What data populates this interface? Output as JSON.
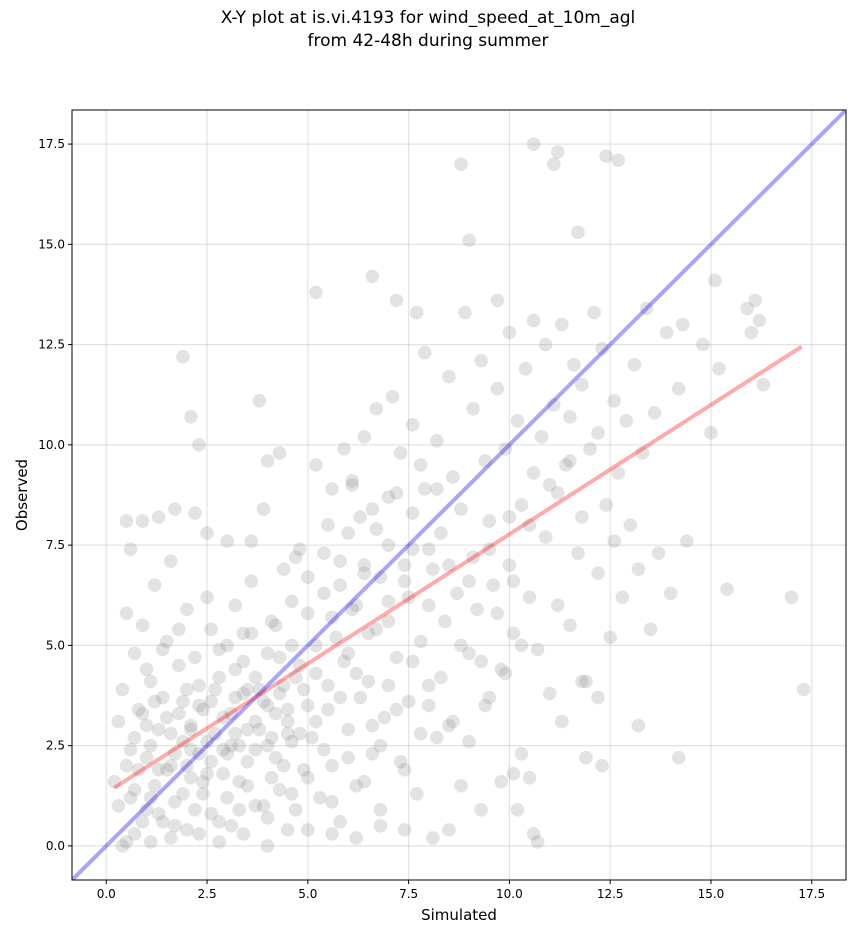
{
  "chart_data": {
    "type": "scatter",
    "title_line1": "X-Y plot at is.vi.4193 for wind_speed_at_10m_agl",
    "title_line2": "from 42-48h during summer",
    "xlabel": "Simulated",
    "ylabel": "Observed",
    "xlim": [
      -0.85,
      18.35
    ],
    "ylim": [
      -0.85,
      18.35
    ],
    "x_ticks": [
      0.0,
      2.5,
      5.0,
      7.5,
      10.0,
      12.5,
      15.0,
      17.5
    ],
    "y_ticks": [
      0.0,
      2.5,
      5.0,
      7.5,
      10.0,
      12.5,
      15.0,
      17.5
    ],
    "x_tick_labels": [
      "0.0",
      "2.5",
      "5.0",
      "7.5",
      "10.0",
      "12.5",
      "15.0",
      "17.5"
    ],
    "y_tick_labels": [
      "0.0",
      "2.5",
      "5.0",
      "7.5",
      "10.0",
      "12.5",
      "15.0",
      "17.5"
    ],
    "grid": true,
    "point_color": "#808080",
    "point_alpha": 0.22,
    "identity_line": {
      "color": "#0000ff",
      "alpha": 0.35,
      "from": [
        -0.85,
        -0.85
      ],
      "to": [
        18.35,
        18.35
      ]
    },
    "fit_line": {
      "color": "#ff0000",
      "alpha": 0.33,
      "from": [
        0.2,
        1.45
      ],
      "to": [
        17.25,
        12.45
      ]
    },
    "points": [
      [
        0.2,
        1.6
      ],
      [
        0.3,
        3.1
      ],
      [
        0.4,
        3.9
      ],
      [
        0.5,
        5.8
      ],
      [
        0.6,
        1.2
      ],
      [
        0.6,
        2.4
      ],
      [
        0.7,
        4.8
      ],
      [
        0.7,
        0.3
      ],
      [
        0.8,
        1.9
      ],
      [
        0.8,
        3.4
      ],
      [
        0.9,
        5.5
      ],
      [
        1.0,
        2.2
      ],
      [
        1.0,
        0.9
      ],
      [
        1.1,
        4.1
      ],
      [
        1.2,
        6.5
      ],
      [
        1.2,
        1.5
      ],
      [
        1.3,
        2.9
      ],
      [
        1.4,
        3.7
      ],
      [
        1.4,
        0.6
      ],
      [
        1.5,
        5.1
      ],
      [
        1.6,
        2.0
      ],
      [
        1.6,
        7.1
      ],
      [
        1.7,
        1.1
      ],
      [
        1.8,
        3.3
      ],
      [
        1.8,
        4.5
      ],
      [
        1.9,
        2.6
      ],
      [
        2.0,
        0.4
      ],
      [
        2.0,
        5.9
      ],
      [
        2.1,
        1.7
      ],
      [
        2.1,
        3.0
      ],
      [
        2.2,
        8.3
      ],
      [
        2.3,
        2.3
      ],
      [
        2.3,
        4.0
      ],
      [
        2.4,
        1.3
      ],
      [
        2.5,
        6.2
      ],
      [
        2.6,
        3.6
      ],
      [
        2.6,
        0.8
      ],
      [
        2.7,
        2.8
      ],
      [
        2.8,
        4.9
      ],
      [
        2.9,
        1.8
      ],
      [
        2.9,
        3.2
      ],
      [
        3.0,
        7.6
      ],
      [
        3.1,
        2.5
      ],
      [
        3.1,
        0.5
      ],
      [
        3.2,
        4.4
      ],
      [
        3.3,
        1.6
      ],
      [
        3.4,
        5.3
      ],
      [
        3.4,
        3.8
      ],
      [
        3.5,
        2.1
      ],
      [
        3.6,
        6.6
      ],
      [
        3.7,
        1.0
      ],
      [
        3.7,
        4.2
      ],
      [
        3.8,
        2.9
      ],
      [
        3.9,
        8.4
      ],
      [
        4.0,
        3.5
      ],
      [
        4.0,
        0.7
      ],
      [
        4.1,
        5.6
      ],
      [
        4.2,
        2.2
      ],
      [
        4.3,
        4.7
      ],
      [
        4.3,
        1.4
      ],
      [
        4.4,
        6.9
      ],
      [
        4.5,
        3.1
      ],
      [
        4.6,
        2.6
      ],
      [
        4.6,
        5.0
      ],
      [
        4.7,
        0.9
      ],
      [
        4.8,
        7.4
      ],
      [
        4.9,
        3.9
      ],
      [
        4.9,
        1.9
      ],
      [
        5.0,
        5.8
      ],
      [
        5.1,
        2.7
      ],
      [
        5.2,
        9.5
      ],
      [
        5.2,
        4.3
      ],
      [
        5.3,
        1.2
      ],
      [
        5.4,
        6.3
      ],
      [
        5.5,
        3.4
      ],
      [
        5.5,
        8.0
      ],
      [
        5.6,
        2.0
      ],
      [
        5.7,
        5.2
      ],
      [
        5.8,
        0.6
      ],
      [
        5.8,
        7.1
      ],
      [
        5.9,
        4.6
      ],
      [
        6.0,
        2.9
      ],
      [
        6.1,
        9.0
      ],
      [
        6.1,
        5.9
      ],
      [
        6.2,
        1.5
      ],
      [
        6.3,
        3.7
      ],
      [
        6.4,
        6.8
      ],
      [
        6.4,
        10.2
      ],
      [
        6.5,
        4.1
      ],
      [
        6.6,
        2.3
      ],
      [
        6.7,
        7.9
      ],
      [
        6.7,
        5.4
      ],
      [
        6.8,
        0.9
      ],
      [
        6.9,
        3.2
      ],
      [
        7.0,
        8.7
      ],
      [
        7.0,
        6.1
      ],
      [
        7.1,
        11.2
      ],
      [
        7.2,
        4.7
      ],
      [
        7.3,
        2.1
      ],
      [
        7.3,
        9.8
      ],
      [
        7.4,
        6.6
      ],
      [
        7.5,
        3.6
      ],
      [
        7.6,
        10.5
      ],
      [
        7.6,
        7.4
      ],
      [
        7.7,
        1.3
      ],
      [
        7.8,
        5.1
      ],
      [
        7.9,
        8.9
      ],
      [
        7.9,
        12.3
      ],
      [
        8.0,
        4.0
      ],
      [
        8.1,
        6.9
      ],
      [
        8.2,
        2.7
      ],
      [
        8.2,
        10.1
      ],
      [
        8.3,
        7.8
      ],
      [
        8.4,
        5.6
      ],
      [
        8.5,
        11.7
      ],
      [
        8.5,
        3.0
      ],
      [
        8.6,
        9.2
      ],
      [
        8.7,
        6.3
      ],
      [
        8.8,
        1.5
      ],
      [
        8.8,
        8.4
      ],
      [
        8.9,
        13.3
      ],
      [
        9.0,
        4.8
      ],
      [
        9.1,
        10.9
      ],
      [
        9.1,
        7.2
      ],
      [
        9.2,
        5.9
      ],
      [
        9.3,
        12.1
      ],
      [
        9.4,
        3.5
      ],
      [
        9.4,
        9.6
      ],
      [
        9.5,
        8.1
      ],
      [
        9.6,
        6.5
      ],
      [
        9.7,
        13.6
      ],
      [
        9.7,
        11.4
      ],
      [
        9.8,
        4.4
      ],
      [
        9.9,
        9.9
      ],
      [
        10.0,
        7.0
      ],
      [
        10.0,
        12.8
      ],
      [
        10.1,
        5.3
      ],
      [
        10.2,
        10.6
      ],
      [
        10.3,
        8.5
      ],
      [
        10.3,
        2.3
      ],
      [
        10.4,
        11.9
      ],
      [
        10.5,
        6.2
      ],
      [
        10.6,
        13.1
      ],
      [
        10.6,
        9.3
      ],
      [
        10.7,
        4.9
      ],
      [
        10.8,
        10.2
      ],
      [
        10.9,
        7.7
      ],
      [
        10.9,
        12.5
      ],
      [
        11.0,
        3.8
      ],
      [
        11.1,
        11.0
      ],
      [
        11.2,
        8.8
      ],
      [
        11.2,
        6.0
      ],
      [
        11.3,
        13.0
      ],
      [
        11.4,
        9.5
      ],
      [
        11.5,
        10.7
      ],
      [
        11.5,
        5.5
      ],
      [
        11.6,
        12.0
      ],
      [
        11.7,
        7.3
      ],
      [
        11.8,
        8.2
      ],
      [
        11.8,
        11.5
      ],
      [
        11.9,
        4.1
      ],
      [
        12.0,
        9.9
      ],
      [
        12.1,
        13.3
      ],
      [
        12.2,
        6.8
      ],
      [
        12.2,
        10.3
      ],
      [
        12.3,
        12.4
      ],
      [
        12.4,
        8.5
      ],
      [
        12.5,
        5.2
      ],
      [
        12.6,
        11.1
      ],
      [
        12.6,
        7.6
      ],
      [
        12.7,
        9.3
      ],
      [
        12.8,
        6.2
      ],
      [
        12.9,
        10.6
      ],
      [
        13.0,
        8.0
      ],
      [
        13.1,
        12.0
      ],
      [
        13.2,
        6.9
      ],
      [
        13.3,
        9.8
      ],
      [
        13.4,
        13.4
      ],
      [
        13.5,
        5.4
      ],
      [
        13.6,
        10.8
      ],
      [
        13.7,
        7.3
      ],
      [
        13.9,
        12.8
      ],
      [
        14.0,
        6.3
      ],
      [
        14.2,
        11.4
      ],
      [
        14.3,
        13.0
      ],
      [
        14.4,
        7.6
      ],
      [
        14.8,
        12.5
      ],
      [
        15.0,
        10.3
      ],
      [
        15.1,
        14.1
      ],
      [
        15.2,
        11.9
      ],
      [
        15.4,
        6.4
      ],
      [
        15.9,
        13.4
      ],
      [
        16.0,
        12.8
      ],
      [
        16.1,
        13.6
      ],
      [
        16.2,
        13.1
      ],
      [
        16.3,
        11.5
      ],
      [
        17.0,
        6.2
      ],
      [
        17.3,
        3.9
      ],
      [
        10.6,
        17.5
      ],
      [
        11.2,
        17.3
      ],
      [
        12.4,
        17.2
      ],
      [
        12.7,
        17.1
      ],
      [
        8.8,
        17.0
      ],
      [
        11.1,
        17.0
      ],
      [
        11.7,
        15.3
      ],
      [
        9.0,
        15.1
      ],
      [
        6.6,
        14.2
      ],
      [
        5.2,
        13.8
      ],
      [
        7.2,
        13.6
      ],
      [
        7.7,
        13.3
      ],
      [
        1.9,
        12.2
      ],
      [
        2.1,
        10.7
      ],
      [
        2.3,
        10.0
      ],
      [
        3.8,
        11.1
      ],
      [
        4.0,
        9.6
      ],
      [
        4.3,
        9.8
      ],
      [
        5.9,
        9.9
      ],
      [
        6.1,
        9.1
      ],
      [
        6.7,
        10.9
      ],
      [
        1.3,
        8.2
      ],
      [
        1.7,
        8.4
      ],
      [
        2.5,
        7.8
      ],
      [
        0.9,
        8.1
      ],
      [
        0.5,
        8.1
      ],
      [
        0.6,
        7.4
      ],
      [
        3.2,
        6.0
      ],
      [
        3.6,
        7.6
      ],
      [
        4.7,
        7.2
      ],
      [
        5.6,
        8.9
      ],
      [
        6.3,
        8.2
      ],
      [
        0.4,
        0.0
      ],
      [
        0.5,
        0.1
      ],
      [
        1.1,
        0.1
      ],
      [
        1.6,
        0.2
      ],
      [
        2.3,
        0.3
      ],
      [
        2.8,
        0.1
      ],
      [
        3.4,
        0.3
      ],
      [
        4.0,
        0.0
      ],
      [
        4.5,
        0.4
      ],
      [
        5.0,
        0.4
      ],
      [
        5.6,
        0.3
      ],
      [
        6.2,
        0.2
      ],
      [
        6.8,
        0.5
      ],
      [
        7.4,
        0.4
      ],
      [
        8.1,
        0.2
      ],
      [
        8.5,
        0.4
      ],
      [
        9.3,
        0.9
      ],
      [
        10.6,
        0.3
      ],
      [
        10.7,
        0.1
      ],
      [
        10.2,
        0.9
      ],
      [
        9.8,
        1.6
      ],
      [
        10.1,
        1.8
      ],
      [
        10.5,
        1.7
      ],
      [
        11.3,
        3.1
      ],
      [
        11.8,
        4.1
      ],
      [
        12.3,
        2.0
      ],
      [
        12.2,
        3.7
      ],
      [
        13.2,
        3.0
      ],
      [
        11.9,
        2.2
      ],
      [
        14.2,
        2.2
      ],
      [
        0.3,
        1.0
      ],
      [
        0.7,
        1.4
      ],
      [
        0.9,
        0.6
      ],
      [
        1.1,
        1.2
      ],
      [
        1.3,
        0.8
      ],
      [
        1.5,
        1.9
      ],
      [
        1.7,
        0.5
      ],
      [
        1.9,
        1.3
      ],
      [
        2.1,
        2.4
      ],
      [
        2.2,
        0.9
      ],
      [
        2.4,
        1.6
      ],
      [
        2.6,
        2.1
      ],
      [
        2.8,
        0.6
      ],
      [
        3.0,
        1.2
      ],
      [
        3.2,
        2.8
      ],
      [
        3.3,
        0.9
      ],
      [
        3.5,
        1.5
      ],
      [
        3.7,
        2.4
      ],
      [
        3.9,
        1.0
      ],
      [
        4.1,
        1.7
      ],
      [
        4.2,
        3.3
      ],
      [
        4.4,
        2.0
      ],
      [
        4.6,
        1.3
      ],
      [
        4.8,
        2.8
      ],
      [
        5.0,
        1.7
      ],
      [
        5.2,
        3.1
      ],
      [
        5.4,
        2.4
      ],
      [
        5.6,
        1.1
      ],
      [
        5.8,
        3.7
      ],
      [
        6.0,
        2.2
      ],
      [
        6.2,
        4.3
      ],
      [
        6.4,
        1.6
      ],
      [
        6.6,
        3.0
      ],
      [
        6.8,
        2.5
      ],
      [
        7.0,
        4.0
      ],
      [
        7.2,
        3.4
      ],
      [
        7.4,
        1.9
      ],
      [
        7.6,
        4.6
      ],
      [
        7.8,
        2.8
      ],
      [
        8.0,
        3.5
      ],
      [
        8.3,
        4.2
      ],
      [
        8.6,
        3.1
      ],
      [
        8.8,
        5.0
      ],
      [
        9.0,
        2.6
      ],
      [
        9.3,
        4.6
      ],
      [
        9.5,
        3.7
      ],
      [
        9.7,
        5.8
      ],
      [
        9.9,
        4.3
      ],
      [
        10.1,
        6.6
      ],
      [
        10.3,
        5.0
      ],
      [
        0.5,
        2.0
      ],
      [
        0.7,
        2.7
      ],
      [
        0.9,
        3.3
      ],
      [
        1.0,
        4.4
      ],
      [
        1.2,
        3.6
      ],
      [
        1.4,
        4.9
      ],
      [
        1.6,
        2.8
      ],
      [
        1.8,
        5.4
      ],
      [
        2.0,
        3.9
      ],
      [
        2.2,
        4.7
      ],
      [
        2.4,
        3.4
      ],
      [
        2.6,
        5.4
      ],
      [
        2.8,
        4.2
      ],
      [
        3.0,
        5.0
      ],
      [
        3.2,
        3.7
      ],
      [
        3.4,
        4.6
      ],
      [
        3.6,
        5.3
      ],
      [
        3.8,
        3.9
      ],
      [
        4.0,
        4.8
      ],
      [
        4.2,
        5.5
      ],
      [
        4.4,
        4.0
      ],
      [
        4.6,
        6.1
      ],
      [
        4.8,
        4.5
      ],
      [
        5.0,
        6.7
      ],
      [
        5.2,
        5.0
      ],
      [
        5.4,
        7.3
      ],
      [
        5.6,
        5.7
      ],
      [
        5.8,
        6.5
      ],
      [
        6.0,
        7.8
      ],
      [
        6.2,
        6.0
      ],
      [
        6.4,
        7.0
      ],
      [
        6.6,
        8.4
      ],
      [
        6.8,
        6.7
      ],
      [
        7.0,
        7.5
      ],
      [
        7.2,
        8.8
      ],
      [
        7.4,
        7.0
      ],
      [
        7.6,
        8.3
      ],
      [
        7.8,
        9.5
      ],
      [
        8.0,
        7.4
      ],
      [
        8.2,
        8.9
      ],
      [
        1.0,
        3.0
      ],
      [
        1.1,
        2.5
      ],
      [
        1.3,
        1.9
      ],
      [
        1.5,
        3.2
      ],
      [
        1.7,
        2.3
      ],
      [
        1.9,
        3.6
      ],
      [
        2.1,
        2.9
      ],
      [
        2.3,
        3.5
      ],
      [
        2.5,
        2.6
      ],
      [
        2.7,
        3.9
      ],
      [
        2.9,
        2.4
      ],
      [
        3.1,
        3.3
      ],
      [
        3.3,
        2.5
      ],
      [
        3.5,
        3.9
      ],
      [
        3.7,
        3.1
      ],
      [
        3.9,
        3.6
      ],
      [
        4.1,
        2.7
      ],
      [
        4.3,
        3.8
      ],
      [
        4.5,
        3.4
      ],
      [
        4.7,
        4.2
      ],
      [
        2.0,
        2.0
      ],
      [
        2.5,
        1.8
      ],
      [
        3.0,
        2.3
      ],
      [
        3.5,
        2.9
      ],
      [
        4.0,
        2.5
      ],
      [
        4.5,
        2.8
      ],
      [
        5.0,
        3.5
      ],
      [
        5.5,
        4.0
      ],
      [
        6.0,
        4.8
      ],
      [
        6.5,
        5.3
      ],
      [
        7.0,
        5.6
      ],
      [
        7.5,
        6.2
      ],
      [
        8.0,
        6.0
      ],
      [
        8.5,
        7.0
      ],
      [
        9.0,
        6.6
      ],
      [
        9.5,
        7.4
      ],
      [
        10.0,
        8.2
      ],
      [
        10.5,
        8.0
      ],
      [
        11.0,
        9.0
      ],
      [
        11.5,
        9.6
      ]
    ]
  }
}
